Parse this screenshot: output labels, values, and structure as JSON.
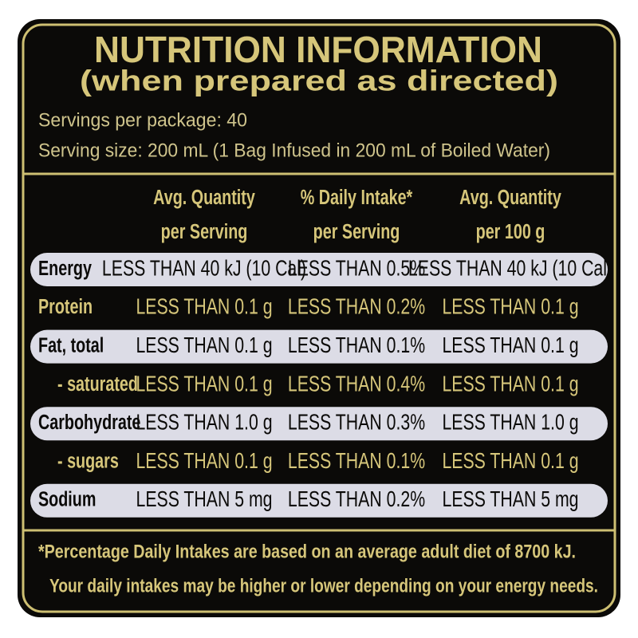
{
  "header": {
    "title": "NUTRITION INFORMATION",
    "subtitle": "(when prepared as directed)",
    "servings": "Servings per package: 40",
    "serving_size": "Serving size: 200 mL (1 Bag Infused in 200 mL of Boiled Water)"
  },
  "table": {
    "columns": [
      [
        "Avg. Quantity",
        "per Serving"
      ],
      [
        "% Daily Intake*",
        "per Serving"
      ],
      [
        "Avg. Quantity",
        "per 100 g"
      ]
    ],
    "rows": [
      {
        "label": "Energy",
        "values": [
          "LESS THAN 40 kJ (10 Cal)",
          "LESS THAN 0.5%",
          "LESS THAN 40 kJ (10 Cal)"
        ]
      },
      {
        "label": "Protein",
        "values": [
          "LESS THAN 0.1 g",
          "LESS THAN 0.2%",
          "LESS THAN 0.1 g"
        ]
      },
      {
        "label": "Fat, total",
        "values": [
          "LESS THAN 0.1 g",
          "LESS THAN 0.1%",
          "LESS THAN 0.1 g"
        ]
      },
      {
        "label": "- saturated",
        "values": [
          "LESS THAN 0.1 g",
          "LESS THAN 0.4%",
          "LESS THAN 0.1 g"
        ]
      },
      {
        "label": "Carbohydrate",
        "values": [
          "LESS THAN 1.0 g",
          "LESS THAN 0.3%",
          "LESS THAN 1.0 g"
        ]
      },
      {
        "label": "- sugars",
        "values": [
          "LESS THAN 0.1 g",
          "LESS THAN 0.1%",
          "LESS THAN 0.1 g"
        ]
      },
      {
        "label": "Sodium",
        "values": [
          "LESS THAN 5 mg",
          "LESS THAN 0.2%",
          "LESS THAN 5 mg"
        ]
      }
    ]
  },
  "footnote": [
    "*Percentage Daily Intakes are based on an average adult diet of 8700 kJ.",
    "Your daily intakes may be higher or lower depending on your energy needs."
  ]
}
